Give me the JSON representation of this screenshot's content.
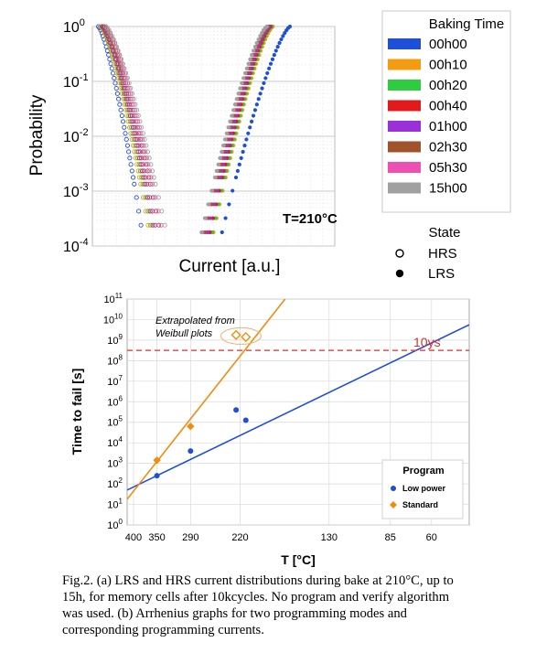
{
  "chart_data": [
    {
      "type": "scatter",
      "panel": "a",
      "xlabel": "Current [a.u.]",
      "ylabel": "Probability",
      "yscale": "log",
      "ylim": [
        0.0001,
        1
      ],
      "y_ticks": [
        {
          "base": "10",
          "exp": "0"
        },
        {
          "base": "10",
          "exp": "-1"
        },
        {
          "base": "10",
          "exp": "-2"
        },
        {
          "base": "10",
          "exp": "-3"
        },
        {
          "base": "10",
          "exp": "-4"
        }
      ],
      "annotation": "T=210°C",
      "legend_title": "Baking Time",
      "legend_placement": "right",
      "state_legend_title": "State",
      "state_legend": [
        {
          "label": "HRS",
          "marker": "open-circle"
        },
        {
          "label": "LRS",
          "marker": "filled-circle"
        }
      ],
      "x_range_au": [
        0,
        10
      ],
      "series": [
        {
          "name": "00h00",
          "color": "#1f4fd8",
          "hrs_x_range": [
            0.25,
            2.05
          ],
          "lrs_x_range": [
            5.35,
            8.15
          ]
        },
        {
          "name": "00h10",
          "color": "#f39c12",
          "hrs_x_range": [
            0.35,
            2.35
          ],
          "lrs_x_range": [
            5.0,
            7.45
          ]
        },
        {
          "name": "00h20",
          "color": "#2ecc40",
          "hrs_x_range": [
            0.4,
            2.45
          ],
          "lrs_x_range": [
            4.95,
            7.4
          ]
        },
        {
          "name": "00h40",
          "color": "#e31a1c",
          "hrs_x_range": [
            0.42,
            2.55
          ],
          "lrs_x_range": [
            4.85,
            7.35
          ]
        },
        {
          "name": "01h00",
          "color": "#9b30d9",
          "hrs_x_range": [
            0.45,
            2.65
          ],
          "lrs_x_range": [
            4.75,
            7.3
          ]
        },
        {
          "name": "02h30",
          "color": "#a0522d",
          "hrs_x_range": [
            0.5,
            2.8
          ],
          "lrs_x_range": [
            4.65,
            7.25
          ]
        },
        {
          "name": "05h30",
          "color": "#ee4fb2",
          "hrs_x_range": [
            0.55,
            2.9
          ],
          "lrs_x_range": [
            4.55,
            7.2
          ]
        },
        {
          "name": "15h00",
          "color": "#a0a0a0",
          "hrs_x_range": [
            0.55,
            3.05
          ],
          "lrs_x_range": [
            4.5,
            7.2
          ]
        }
      ]
    },
    {
      "type": "scatter",
      "panel": "b",
      "xlabel": "T [°C]",
      "ylabel": "Time to fail [s]",
      "yscale": "log",
      "ylim_exp": [
        0,
        11
      ],
      "x_ticks": [
        "400",
        "350",
        "290",
        "220",
        "130",
        "85",
        "60"
      ],
      "x_tick_temps_c": [
        400,
        350,
        290,
        220,
        130,
        85,
        60
      ],
      "legend_title": "Program",
      "legend_placement": "bottom-right",
      "series": [
        {
          "name": "Low power",
          "color": "#1f4fd8",
          "marker": "circle",
          "points": [
            {
              "t_c": 350,
              "exp": 2.4
            },
            {
              "t_c": 290,
              "exp": 3.6
            },
            {
              "t_c": 225,
              "exp": 5.6
            },
            {
              "t_c": 213,
              "exp": 5.1
            }
          ],
          "fit_exp": {
            "t_start_c": 415,
            "exp_start": 1.7,
            "t_end_c": 40,
            "exp_end": 9.75
          }
        },
        {
          "name": "Standard",
          "color": "#f28c0f",
          "marker": "diamond",
          "points": [
            {
              "t_c": 350,
              "exp": 3.15
            },
            {
              "t_c": 290,
              "exp": 4.8
            }
          ],
          "extrapolated": [
            {
              "t_c": 225,
              "exp": 9.25
            },
            {
              "t_c": 213,
              "exp": 9.15
            }
          ],
          "fit_exp": {
            "t_start_c": 415,
            "exp_start": 1.25,
            "t_end_c": 170,
            "exp_end": 11.0
          }
        }
      ],
      "reference_line": {
        "label": "10ys",
        "exp": 8.5,
        "color": "#e84c4c"
      },
      "annotation": "Extrapolated from Weibull plots"
    }
  ],
  "caption": {
    "lines": [
      "Fig.2. (a) LRS and HRS current distributions during bake at 210°C, up to",
      "15h, for memory cells after 10kcycles. No program and verify algorithm",
      "was used. (b) Arrhenius graphs for two programming modes and",
      "corresponding programming currents."
    ]
  }
}
